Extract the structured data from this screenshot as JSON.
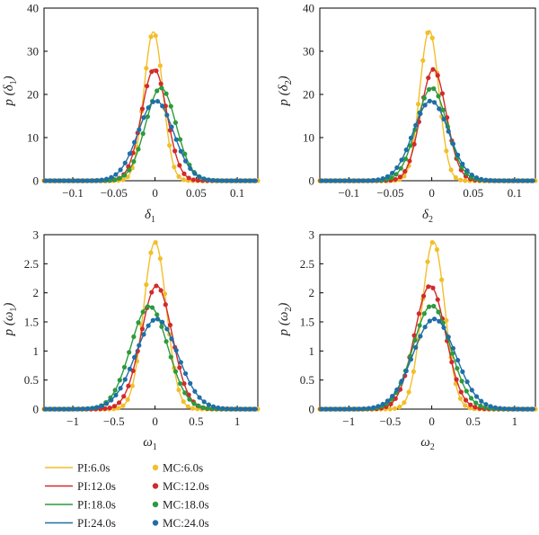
{
  "colors": {
    "yellow": "#f2be2a",
    "red": "#d22a2a",
    "green": "#2c9a3e",
    "blue": "#1f6fa6"
  },
  "legend": {
    "placement": "bottom-left",
    "pi_entries": [
      "PI:6.0s",
      "PI:12.0s",
      "PI:18.0s",
      "PI:24.0s"
    ],
    "mc_entries": [
      "MC:6.0s",
      "MC:12.0s",
      "MC:18.0s",
      "MC:24.0s"
    ]
  },
  "chart_data": [
    {
      "type": "line",
      "xlabel": {
        "base": "δ",
        "sub": "1"
      },
      "ylabel": {
        "prefix": "p (",
        "base": "δ",
        "sub": "1",
        "suffix": ")"
      },
      "xlim": [
        -0.135,
        0.125
      ],
      "ylim": [
        0,
        40
      ],
      "xticks": [
        -0.1,
        -0.05,
        0,
        0.05,
        0.1
      ],
      "xtick_labels": [
        "−0.1",
        "−0.05",
        "0",
        "0.05",
        "0.1"
      ],
      "yticks": [
        0,
        10,
        20,
        30,
        40
      ],
      "ytick_labels": [
        "0",
        "10",
        "20",
        "30",
        "40"
      ],
      "series": [
        {
          "name": "6.0s",
          "color": "yellow",
          "mean": -0.002,
          "peak": 34.5
        },
        {
          "name": "12.0s",
          "color": "red",
          "mean": -0.001,
          "peak": 25.8
        },
        {
          "name": "18.0s",
          "color": "green",
          "mean": 0.007,
          "peak": 21.5
        },
        {
          "name": "24.0s",
          "color": "blue",
          "mean": 0.001,
          "peak": 18.5
        }
      ]
    },
    {
      "type": "line",
      "xlabel": {
        "base": "δ",
        "sub": "2"
      },
      "ylabel": {
        "prefix": "p (",
        "base": "δ",
        "sub": "2",
        "suffix": ")"
      },
      "xlim": [
        -0.135,
        0.125
      ],
      "ylim": [
        0,
        40
      ],
      "xticks": [
        -0.1,
        -0.05,
        0,
        0.05,
        0.1
      ],
      "xtick_labels": [
        "−0.1",
        "−0.05",
        "0",
        "0.05",
        "0.1"
      ],
      "yticks": [
        0,
        10,
        20,
        30,
        40
      ],
      "ytick_labels": [
        "0",
        "10",
        "20",
        "30",
        "40"
      ],
      "series": [
        {
          "name": "6.0s",
          "color": "yellow",
          "mean": -0.003,
          "peak": 34.8
        },
        {
          "name": "12.0s",
          "color": "red",
          "mean": 0.002,
          "peak": 25.8
        },
        {
          "name": "18.0s",
          "color": "green",
          "mean": 0.0,
          "peak": 21.5
        },
        {
          "name": "24.0s",
          "color": "blue",
          "mean": -0.001,
          "peak": 18.5
        }
      ]
    },
    {
      "type": "line",
      "xlabel": {
        "base": "ω",
        "sub": "1"
      },
      "ylabel": {
        "prefix": "p (",
        "base": "ω",
        "sub": "1",
        "suffix": ")"
      },
      "xlim": [
        -1.35,
        1.25
      ],
      "ylim": [
        0,
        3
      ],
      "xticks": [
        -1,
        -0.5,
        0,
        0.5,
        1
      ],
      "xtick_labels": [
        "−1",
        "−0.5",
        "0",
        "0.5",
        "1"
      ],
      "yticks": [
        0,
        0.5,
        1,
        1.5,
        2,
        2.5,
        3
      ],
      "ytick_labels": [
        "0",
        "0.5",
        "1",
        "1.5",
        "2",
        "2.5",
        "3"
      ],
      "series": [
        {
          "name": "6.0s",
          "color": "yellow",
          "mean": 0.0,
          "peak": 2.87
        },
        {
          "name": "12.0s",
          "color": "red",
          "mean": 0.02,
          "peak": 2.12
        },
        {
          "name": "18.0s",
          "color": "green",
          "mean": -0.07,
          "peak": 1.77
        },
        {
          "name": "24.0s",
          "color": "blue",
          "mean": 0.02,
          "peak": 1.55
        }
      ]
    },
    {
      "type": "line",
      "xlabel": {
        "base": "ω",
        "sub": "2"
      },
      "ylabel": {
        "prefix": "p (",
        "base": "ω",
        "sub": "2",
        "suffix": ")"
      },
      "xlim": [
        -1.35,
        1.25
      ],
      "ylim": [
        0,
        3
      ],
      "xticks": [
        -1,
        -0.5,
        0,
        0.5,
        1
      ],
      "xtick_labels": [
        "−1",
        "−0.5",
        "0",
        "0.5",
        "1"
      ],
      "yticks": [
        0,
        0.5,
        1,
        1.5,
        2,
        2.5,
        3
      ],
      "ytick_labels": [
        "0",
        "0.5",
        "1",
        "1.5",
        "2",
        "2.5",
        "3"
      ],
      "series": [
        {
          "name": "6.0s",
          "color": "yellow",
          "mean": 0.02,
          "peak": 2.88
        },
        {
          "name": "12.0s",
          "color": "red",
          "mean": -0.02,
          "peak": 2.12
        },
        {
          "name": "18.0s",
          "color": "green",
          "mean": 0.0,
          "peak": 1.78
        },
        {
          "name": "24.0s",
          "color": "blue",
          "mean": 0.03,
          "peak": 1.55
        }
      ]
    }
  ]
}
